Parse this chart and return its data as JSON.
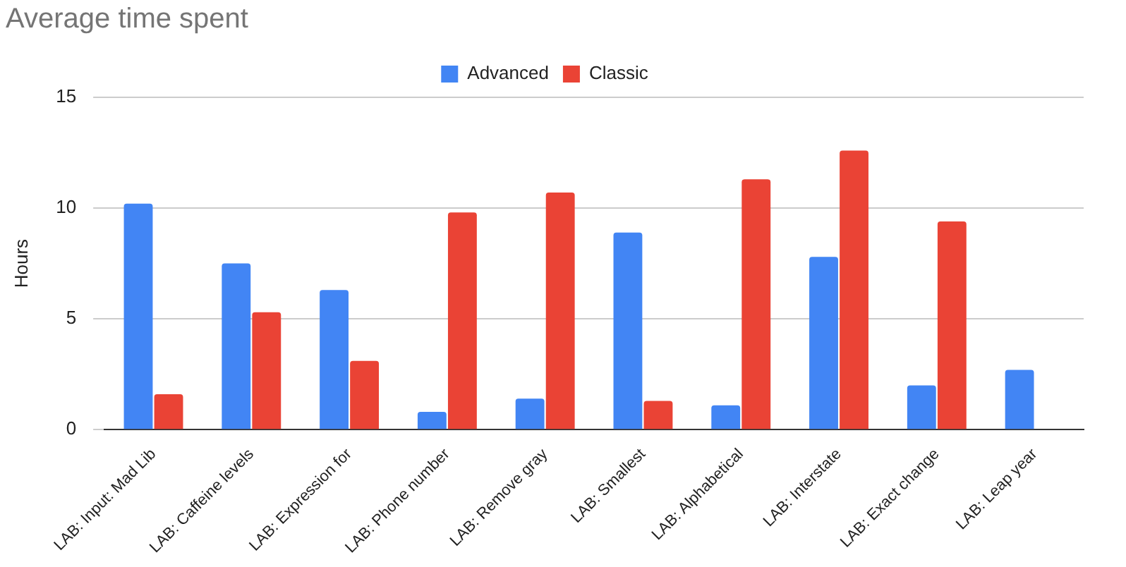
{
  "chart_data": {
    "type": "bar",
    "title": "Average time spent",
    "ylabel": "Hours",
    "categories": [
      "LAB: Input: Mad Lib",
      "LAB: Caffeine levels",
      "LAB: Expression for",
      "LAB: Phone number",
      "LAB: Remove gray",
      "LAB: Smallest",
      "LAB: Alphabetical",
      "LAB: Interstate",
      "LAB: Exact change",
      "LAB: Leap year"
    ],
    "series": [
      {
        "name": "Advanced",
        "color": "#4285f4",
        "values": [
          10.2,
          7.5,
          6.3,
          0.8,
          1.4,
          8.9,
          1.1,
          7.8,
          2.0,
          2.7
        ]
      },
      {
        "name": "Classic",
        "color": "#ea4335",
        "values": [
          1.6,
          5.3,
          3.1,
          9.8,
          10.7,
          1.3,
          11.3,
          12.6,
          9.4,
          null
        ]
      }
    ],
    "ylim": [
      0,
      15
    ],
    "yticks": [
      0,
      5,
      10,
      15
    ],
    "grid": "y",
    "legend": "top"
  }
}
